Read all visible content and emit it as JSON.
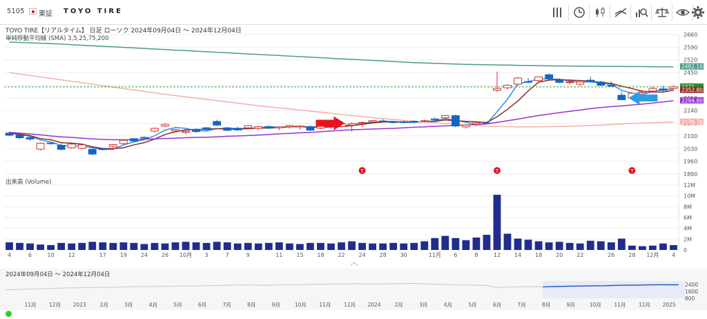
{
  "header": {
    "code": "5105",
    "market": "東証",
    "company": "TOYO TIRE",
    "tools": [
      {
        "name": "bars-icon"
      },
      {
        "name": "clock-icon"
      },
      {
        "name": "candlestick-icon"
      },
      {
        "name": "trend-line-icon"
      },
      {
        "name": "chart-search-icon"
      },
      {
        "name": "scale-icon"
      },
      {
        "name": "eye-icon"
      },
      {
        "name": "gear-icon"
      }
    ]
  },
  "chart_data": {
    "type": "candlestick",
    "title": "TOYO TIRE【リアルタイム】 日足 ローソク 2024年09月04日 ～ 2024年12月04日",
    "subtitle": "単純移動平均線 (SMA) 3,5,25,75,200",
    "volume_label": "出来高 (Volume)",
    "price_axis": {
      "ticks": [
        1890,
        1960,
        2030,
        2100,
        2170,
        2240,
        2310,
        2380,
        2450,
        2520,
        2590,
        2660
      ],
      "range": [
        1890,
        2660
      ]
    },
    "volume_axis": {
      "ticks": [
        "0",
        "2M",
        "4M",
        "6M",
        "8M",
        "10M",
        "12M"
      ],
      "range": [
        0,
        12
      ]
    },
    "price_badges": [
      {
        "value": "2482.10",
        "color": "#4a9a8c"
      },
      {
        "value": "2371",
        "color": "#2e8b2e"
      },
      {
        "value": "2352.80",
        "color": "#8b2b1e"
      },
      {
        "value": "2294.80",
        "color": "#9b30d0"
      },
      {
        "value": "2176.76",
        "color": "#f4b0a8"
      }
    ],
    "current_price": 2371,
    "x_labels": [
      "4",
      "6",
      "10",
      "12",
      "17",
      "19",
      "24",
      "26",
      "10月",
      "3",
      "7",
      "9",
      "11",
      "15",
      "18",
      "22",
      "24",
      "28",
      "30",
      "11月",
      "6",
      "8",
      "12",
      "14",
      "18",
      "20",
      "22",
      "26",
      "28",
      "12月",
      "4"
    ],
    "candles": [
      {
        "o": 2116,
        "h": 2124,
        "l": 2098,
        "c": 2104
      },
      {
        "o": 2105,
        "h": 2110,
        "l": 2083,
        "c": 2090
      },
      {
        "o": 2091,
        "h": 2101,
        "l": 2073,
        "c": 2083
      },
      {
        "o": 2027,
        "h": 2064,
        "l": 2019,
        "c": 2060
      },
      {
        "o": 2061,
        "h": 2070,
        "l": 2052,
        "c": 2058
      },
      {
        "o": 2048,
        "h": 2058,
        "l": 2021,
        "c": 2026
      },
      {
        "o": 2035,
        "h": 2058,
        "l": 2030,
        "c": 2055
      },
      {
        "o": 2032,
        "h": 2055,
        "l": 2027,
        "c": 2051
      },
      {
        "o": 2026,
        "h": 2032,
        "l": 1993,
        "c": 2000
      },
      {
        "o": 2030,
        "h": 2034,
        "l": 2021,
        "c": 2025
      },
      {
        "o": 2042,
        "h": 2056,
        "l": 2035,
        "c": 2052
      },
      {
        "o": 2058,
        "h": 2080,
        "l": 2052,
        "c": 2076
      },
      {
        "o": 2085,
        "h": 2090,
        "l": 2067,
        "c": 2072
      },
      {
        "o": 2092,
        "h": 2098,
        "l": 2081,
        "c": 2089
      },
      {
        "o": 2127,
        "h": 2146,
        "l": 2120,
        "c": 2142
      },
      {
        "o": 2155,
        "h": 2170,
        "l": 2148,
        "c": 2164
      },
      {
        "o": 2128,
        "h": 2140,
        "l": 2120,
        "c": 2136
      },
      {
        "o": 2120,
        "h": 2130,
        "l": 2108,
        "c": 2126
      },
      {
        "o": 2137,
        "h": 2143,
        "l": 2118,
        "c": 2124
      },
      {
        "o": 2145,
        "h": 2150,
        "l": 2128,
        "c": 2135
      },
      {
        "o": 2180,
        "h": 2190,
        "l": 2155,
        "c": 2160
      },
      {
        "o": 2145,
        "h": 2150,
        "l": 2126,
        "c": 2131
      },
      {
        "o": 2142,
        "h": 2150,
        "l": 2128,
        "c": 2133
      },
      {
        "o": 2145,
        "h": 2160,
        "l": 2138,
        "c": 2157
      },
      {
        "o": 2142,
        "h": 2156,
        "l": 2132,
        "c": 2151
      },
      {
        "o": 2152,
        "h": 2158,
        "l": 2138,
        "c": 2143
      },
      {
        "o": 2145,
        "h": 2152,
        "l": 2132,
        "c": 2150
      },
      {
        "o": 2151,
        "h": 2162,
        "l": 2140,
        "c": 2158
      },
      {
        "o": 2150,
        "h": 2158,
        "l": 2135,
        "c": 2155
      },
      {
        "o": 2152,
        "h": 2158,
        "l": 2128,
        "c": 2132
      },
      {
        "o": 2143,
        "h": 2160,
        "l": 2138,
        "c": 2156
      },
      {
        "o": 2150,
        "h": 2166,
        "l": 2140,
        "c": 2162
      },
      {
        "o": 2152,
        "h": 2172,
        "l": 2146,
        "c": 2170
      },
      {
        "o": 2160,
        "h": 2176,
        "l": 2124,
        "c": 2168
      },
      {
        "o": 2170,
        "h": 2180,
        "l": 2150,
        "c": 2174
      },
      {
        "o": 2178,
        "h": 2189,
        "l": 2172,
        "c": 2185
      },
      {
        "o": 2183,
        "h": 2192,
        "l": 2176,
        "c": 2181
      },
      {
        "o": 2178,
        "h": 2183,
        "l": 2170,
        "c": 2174
      },
      {
        "o": 2179,
        "h": 2185,
        "l": 2170,
        "c": 2174
      },
      {
        "o": 2181,
        "h": 2186,
        "l": 2171,
        "c": 2176
      },
      {
        "o": 2181,
        "h": 2190,
        "l": 2175,
        "c": 2184
      },
      {
        "o": 2194,
        "h": 2202,
        "l": 2185,
        "c": 2191
      },
      {
        "o": 2200,
        "h": 2215,
        "l": 2190,
        "c": 2212
      },
      {
        "o": 2212,
        "h": 2218,
        "l": 2148,
        "c": 2155
      },
      {
        "o": 2150,
        "h": 2165,
        "l": 2140,
        "c": 2160
      },
      {
        "o": 2165,
        "h": 2175,
        "l": 2158,
        "c": 2172
      },
      {
        "o": 2172,
        "h": 2180,
        "l": 2165,
        "c": 2168
      },
      {
        "o": 2352,
        "h": 2455,
        "l": 2342,
        "c": 2362
      },
      {
        "o": 2366,
        "h": 2385,
        "l": 2356,
        "c": 2380
      },
      {
        "o": 2386,
        "h": 2426,
        "l": 2376,
        "c": 2420
      },
      {
        "o": 2400,
        "h": 2420,
        "l": 2390,
        "c": 2399
      },
      {
        "o": 2406,
        "h": 2430,
        "l": 2396,
        "c": 2426
      },
      {
        "o": 2438,
        "h": 2446,
        "l": 2405,
        "c": 2416
      },
      {
        "o": 2411,
        "h": 2418,
        "l": 2390,
        "c": 2396
      },
      {
        "o": 2396,
        "h": 2415,
        "l": 2385,
        "c": 2398
      },
      {
        "o": 2386,
        "h": 2402,
        "l": 2375,
        "c": 2398
      },
      {
        "o": 2408,
        "h": 2428,
        "l": 2396,
        "c": 2400
      },
      {
        "o": 2398,
        "h": 2405,
        "l": 2375,
        "c": 2380
      },
      {
        "o": 2380,
        "h": 2400,
        "l": 2372,
        "c": 2375
      },
      {
        "o": 2325,
        "h": 2345,
        "l": 2296,
        "c": 2300
      },
      {
        "o": 2310,
        "h": 2340,
        "l": 2300,
        "c": 2336
      },
      {
        "o": 2338,
        "h": 2352,
        "l": 2330,
        "c": 2344
      },
      {
        "o": 2348,
        "h": 2372,
        "l": 2340,
        "c": 2362
      },
      {
        "o": 2360,
        "h": 2376,
        "l": 2342,
        "c": 2352
      },
      {
        "o": 2362,
        "h": 2380,
        "l": 2350,
        "c": 2371
      }
    ],
    "sma": [
      {
        "name": "3",
        "color": "#2f8fe8",
        "values": [
          2116,
          2107,
          2099,
          2078,
          2067,
          2048,
          2046,
          2044,
          2035,
          2025,
          2026,
          2051,
          2067,
          2079,
          2101,
          2132,
          2147,
          2142,
          2129,
          2128,
          2140,
          2142,
          2142,
          2140,
          2147,
          2150,
          2148,
          2150,
          2154,
          2148,
          2147,
          2148,
          2153,
          2165,
          2171,
          2176,
          2180,
          2180,
          2176,
          2175,
          2178,
          2184,
          2196,
          2186,
          2176,
          2162,
          2167,
          2234,
          2303,
          2387,
          2400,
          2415,
          2414,
          2413,
          2403,
          2397,
          2399,
          2392,
          2385,
          2352,
          2337,
          2327,
          2347,
          2353,
          2362
        ]
      },
      {
        "o": 1,
        "name": "5",
        "color": "#8b2b1e",
        "values": [
          2116,
          2110,
          2102,
          2085,
          2079,
          2063,
          2060,
          2055,
          2040,
          2031,
          2030,
          2035,
          2051,
          2063,
          2083,
          2108,
          2123,
          2134,
          2135,
          2138,
          2140,
          2138,
          2137,
          2141,
          2143,
          2144,
          2147,
          2151,
          2151,
          2149,
          2150,
          2151,
          2152,
          2157,
          2164,
          2172,
          2177,
          2178,
          2176,
          2178,
          2178,
          2180,
          2188,
          2184,
          2181,
          2178,
          2174,
          2206,
          2247,
          2293,
          2349,
          2397,
          2408,
          2411,
          2408,
          2406,
          2404,
          2395,
          2390,
          2375,
          2362,
          2347,
          2343,
          2342,
          2353
        ]
      },
      {
        "name": "25",
        "color": "#9b30d0",
        "values": [
          2120,
          2116,
          2111,
          2106,
          2100,
          2095,
          2092,
          2088,
          2084,
          2081,
          2079,
          2079,
          2080,
          2082,
          2084,
          2086,
          2088,
          2090,
          2092,
          2093,
          2095,
          2098,
          2100,
          2102,
          2105,
          2108,
          2112,
          2114,
          2117,
          2120,
          2123,
          2127,
          2131,
          2134,
          2136,
          2138,
          2140,
          2142,
          2145,
          2148,
          2150,
          2153,
          2156,
          2158,
          2161,
          2163,
          2167,
          2175,
          2184,
          2193,
          2203,
          2213,
          2221,
          2229,
          2236,
          2243,
          2251,
          2257,
          2262,
          2266,
          2271,
          2276,
          2282,
          2288,
          2295
        ]
      },
      {
        "name": "75",
        "color": "#f4b0a8",
        "values": [
          2450,
          2442,
          2434,
          2426,
          2418,
          2410,
          2402,
          2394,
          2386,
          2378,
          2370,
          2362,
          2354,
          2346,
          2338,
          2330,
          2323,
          2316,
          2309,
          2302,
          2295,
          2288,
          2281,
          2274,
          2267,
          2261,
          2255,
          2249,
          2243,
          2237,
          2231,
          2225,
          2219,
          2213,
          2207,
          2201,
          2196,
          2191,
          2186,
          2181,
          2177,
          2173,
          2169,
          2165,
          2161,
          2157,
          2154,
          2152,
          2151,
          2150,
          2150,
          2150,
          2151,
          2152,
          2154,
          2156,
          2158,
          2160,
          2163,
          2166,
          2169,
          2171,
          2173,
          2175,
          2177
        ]
      },
      {
        "name": "200",
        "color": "#4a9a8c",
        "values": [
          2618,
          2616,
          2614,
          2612,
          2610,
          2607,
          2604,
          2601,
          2598,
          2595,
          2592,
          2589,
          2586,
          2583,
          2580,
          2577,
          2574,
          2571,
          2568,
          2565,
          2562,
          2559,
          2556,
          2553,
          2550,
          2547,
          2544,
          2541,
          2538,
          2535,
          2532,
          2529,
          2526,
          2523,
          2520,
          2517,
          2514,
          2511,
          2508,
          2505,
          2503,
          2501,
          2499,
          2497,
          2495,
          2494,
          2493,
          2492,
          2491,
          2490,
          2489,
          2488,
          2487,
          2486,
          2486,
          2485,
          2485,
          2484,
          2484,
          2484,
          2483,
          2483,
          2482,
          2482,
          2482
        ]
      }
    ],
    "volume": [
      1.4,
      1.3,
      1.2,
      1.0,
      0.9,
      1.3,
      1.2,
      1.3,
      1.5,
      1.4,
      1.3,
      1.4,
      1.3,
      1.1,
      1.3,
      1.2,
      1.4,
      1.5,
      1.4,
      1.3,
      1.5,
      1.4,
      1.2,
      1.3,
      1.2,
      1.3,
      1.4,
      1.2,
      1.1,
      1.3,
      1.3,
      1.2,
      1.4,
      1.6,
      1.3,
      1.2,
      1.2,
      1.3,
      1.2,
      1.3,
      1.6,
      2.2,
      2.6,
      2.2,
      1.8,
      2.3,
      2.8,
      10.2,
      3.0,
      2.1,
      1.9,
      1.6,
      1.4,
      1.5,
      1.3,
      1.2,
      1.7,
      1.6,
      1.4,
      2.1,
      0.8,
      0.7,
      0.8,
      1.2,
      0.9
    ],
    "events": [
      {
        "label": "T",
        "index": 34
      },
      {
        "label": "T",
        "index": 47
      },
      {
        "label": "T",
        "index": 60
      }
    ],
    "arrows": [
      {
        "index": 31,
        "price": 2170,
        "color": "#e5141f",
        "direction": "right"
      },
      {
        "index": 61,
        "price": 2310,
        "color": "#2a9ee6",
        "direction": "left"
      }
    ]
  },
  "navigator": {
    "range_label": "2024年09月04日 ～ 2024年12月04日",
    "x_labels": [
      "11月",
      "12月",
      "2023",
      "2月",
      "3月",
      "4月",
      "5月",
      "6月",
      "7月",
      "8月",
      "9月",
      "10月",
      "11月",
      "12月",
      "2024",
      "2月",
      "3月",
      "4月",
      "5月",
      "6月",
      "7月",
      "8月",
      "9月",
      "10月",
      "11月",
      "12月",
      "2025"
    ],
    "y_ticks": [
      "800",
      "1600",
      "2400"
    ],
    "series": [
      1780,
      1800,
      1820,
      1850,
      1870,
      1880,
      1900,
      1920,
      1950,
      1980,
      2000,
      2010,
      2020,
      2040,
      2060,
      2080,
      2070,
      2060,
      2090,
      2110,
      2130,
      2140,
      2150,
      2160,
      2170,
      2180,
      2190,
      2200,
      2210,
      2220,
      2230,
      2240,
      2250,
      2260,
      2270,
      2290,
      2310,
      2330,
      2340,
      2350,
      2340,
      2320,
      2300,
      2320,
      2340,
      2360,
      2370,
      2380,
      2390,
      2410,
      2420,
      2430,
      2440,
      2450,
      2460,
      2470,
      2480,
      2490,
      2470,
      2450,
      2440,
      2460,
      2480,
      2490,
      2500,
      2510,
      2520,
      2500,
      2470,
      2430,
      2420,
      2400,
      2380,
      2360,
      2340,
      2330,
      2320,
      2310,
      2300,
      2100,
      2050,
      2080,
      2100,
      2120,
      2140,
      2150,
      2140,
      2130,
      2140,
      2160,
      2180,
      2200,
      2210,
      2220,
      2230,
      2240,
      2250,
      2260,
      2280,
      2300,
      2310,
      2320,
      2330,
      2340,
      2350,
      2370,
      2380,
      2370,
      2360,
      2370
    ],
    "selected_from_index": 87,
    "selected_to_index": 110
  }
}
